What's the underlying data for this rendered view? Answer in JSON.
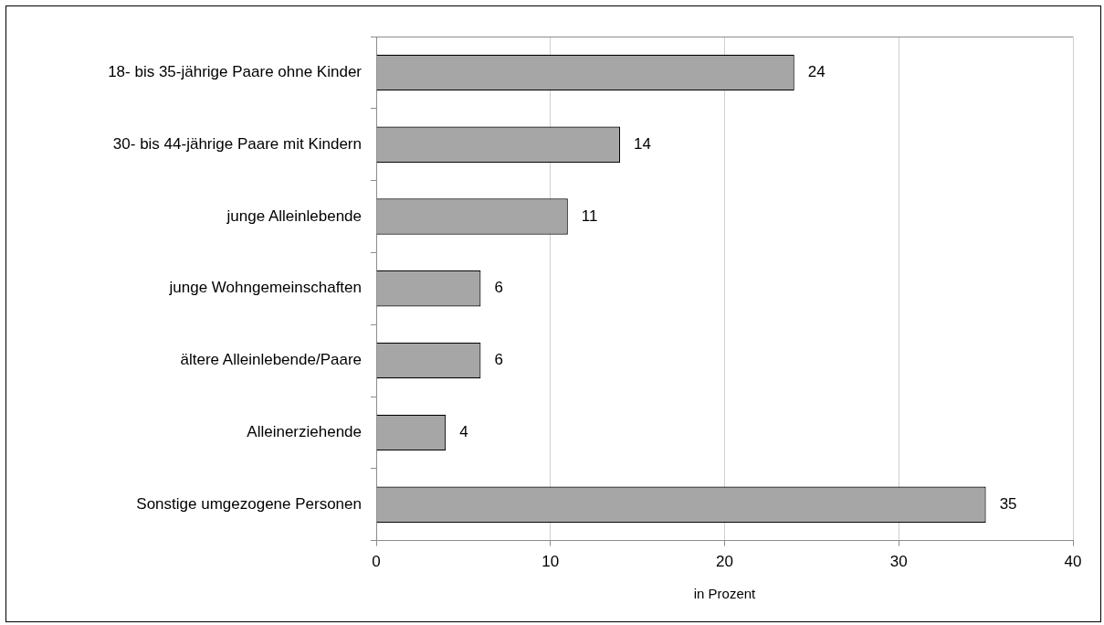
{
  "chart_data": {
    "type": "bar",
    "orientation": "horizontal",
    "xlabel": "in Prozent",
    "categories": [
      "18- bis 35-jährige Paare ohne Kinder",
      "30- bis 44-jährige Paare mit Kindern",
      "junge Alleinlebende",
      "junge Wohngemeinschaften",
      "ältere Alleinlebende/Paare",
      "Alleinerziehende",
      "Sonstige umgezogene Personen"
    ],
    "values": [
      24,
      14,
      11,
      6,
      6,
      4,
      35
    ],
    "color": "#a6a6a6",
    "xlim": [
      0,
      40
    ],
    "xticks": [
      0,
      10,
      20,
      30,
      40
    ],
    "grid": "x",
    "data_labels": true
  }
}
